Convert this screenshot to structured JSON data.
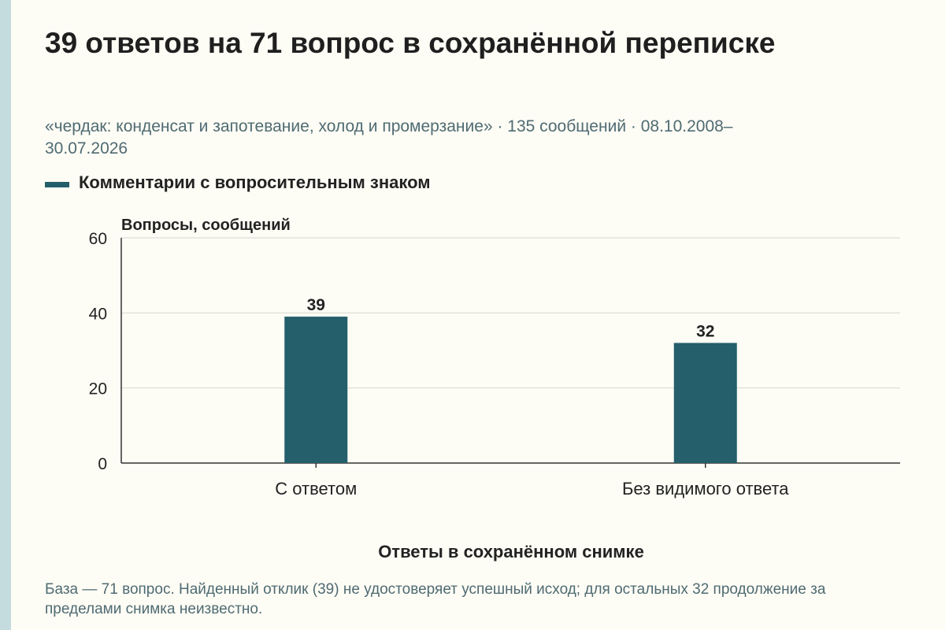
{
  "title": "39 ответов на 71 вопрос в сохранённой переписке",
  "subtitle": "«чердак: конденсат и запотевание, холод и промерзание» · 135 сообщений · 08.10.2008–30.07.2026",
  "footnote": "База — 71 вопрос. Найденный отклик (39) не удостоверяет успешный исход; для остальных 32 продолжение за пределами снимка неизвестно.",
  "colors": {
    "bar": "#245f6b",
    "accent_strip": "#c4dcde",
    "background": "#fdfcf5"
  },
  "chart_data": {
    "type": "bar",
    "categories": [
      "С ответом",
      "Без видимого ответа"
    ],
    "series": [
      {
        "name": "Комментарии с вопросительным знаком",
        "values": [
          39,
          32
        ]
      }
    ],
    "data_labels": [
      "39",
      "32"
    ],
    "xlabel": "Ответы в сохранённом снимке",
    "ylabel": "Вопросы, сообщений",
    "ylim": [
      0,
      60
    ],
    "yticks": [
      0,
      20,
      40,
      60
    ],
    "grid": true,
    "legend_position": "top-left"
  }
}
